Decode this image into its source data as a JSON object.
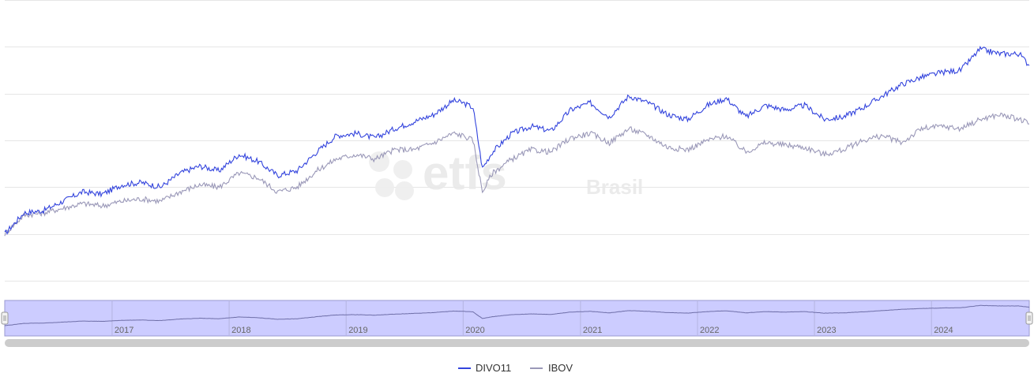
{
  "watermark": {
    "brand": "etfs",
    "sub": "Brasil"
  },
  "colors": {
    "divo11": "#3344dd",
    "ibov": "#9a98b8",
    "grid": "#e6e6e6",
    "navigator_fill": "#ccccff",
    "navigator_border": "#9a9ad0",
    "scrollbar": "#cccccc"
  },
  "legend": [
    {
      "name": "DIVO11",
      "color": "#3344dd"
    },
    {
      "name": "IBOV",
      "color": "#9a98b8"
    }
  ],
  "navigator": {
    "years": [
      "2017",
      "2018",
      "2019",
      "2020",
      "2021",
      "2022",
      "2023",
      "2024"
    ]
  },
  "chart_data": {
    "type": "line",
    "x_range": [
      "2016-02",
      "2024-11"
    ],
    "ylim": [
      0,
      6
    ],
    "grid": true,
    "y_tick_labels_shown": false,
    "legend_position": "bottom-center",
    "series": [
      {
        "name": "DIVO11",
        "color": "#3344dd",
        "x": [
          "2016-02",
          "2016-04",
          "2016-06",
          "2016-08",
          "2016-10",
          "2016-12",
          "2017-02",
          "2017-04",
          "2017-06",
          "2017-08",
          "2017-10",
          "2017-12",
          "2018-02",
          "2018-04",
          "2018-06",
          "2018-08",
          "2018-10",
          "2018-12",
          "2019-02",
          "2019-04",
          "2019-06",
          "2019-08",
          "2019-10",
          "2019-12",
          "2020-01",
          "2020-02",
          "2020-03",
          "2020-04",
          "2020-06",
          "2020-08",
          "2020-10",
          "2020-12",
          "2021-02",
          "2021-04",
          "2021-06",
          "2021-08",
          "2021-10",
          "2021-12",
          "2022-02",
          "2022-04",
          "2022-06",
          "2022-08",
          "2022-10",
          "2022-12",
          "2023-02",
          "2023-04",
          "2023-06",
          "2023-08",
          "2023-10",
          "2023-12",
          "2024-02",
          "2024-04",
          "2024-06",
          "2024-08",
          "2024-10",
          "2024-11"
        ],
        "values": [
          1.0,
          1.45,
          1.5,
          1.7,
          1.9,
          1.85,
          2.05,
          2.1,
          2.0,
          2.3,
          2.45,
          2.35,
          2.7,
          2.55,
          2.25,
          2.35,
          2.75,
          3.1,
          3.15,
          3.05,
          3.25,
          3.4,
          3.55,
          3.85,
          3.8,
          3.7,
          2.4,
          2.75,
          3.15,
          3.3,
          3.2,
          3.65,
          3.8,
          3.5,
          3.95,
          3.8,
          3.55,
          3.45,
          3.75,
          3.9,
          3.5,
          3.75,
          3.65,
          3.75,
          3.45,
          3.5,
          3.7,
          3.95,
          4.2,
          4.35,
          4.45,
          4.5,
          4.95,
          4.85,
          4.85,
          4.6
        ]
      },
      {
        "name": "IBOV",
        "color": "#9a98b8",
        "x": [
          "2016-02",
          "2016-04",
          "2016-06",
          "2016-08",
          "2016-10",
          "2016-12",
          "2017-02",
          "2017-04",
          "2017-06",
          "2017-08",
          "2017-10",
          "2017-12",
          "2018-02",
          "2018-04",
          "2018-06",
          "2018-08",
          "2018-10",
          "2018-12",
          "2019-02",
          "2019-04",
          "2019-06",
          "2019-08",
          "2019-10",
          "2019-12",
          "2020-01",
          "2020-02",
          "2020-03",
          "2020-04",
          "2020-06",
          "2020-08",
          "2020-10",
          "2020-12",
          "2021-02",
          "2021-04",
          "2021-06",
          "2021-08",
          "2021-10",
          "2021-12",
          "2022-02",
          "2022-04",
          "2022-06",
          "2022-08",
          "2022-10",
          "2022-12",
          "2023-02",
          "2023-04",
          "2023-06",
          "2023-08",
          "2023-10",
          "2023-12",
          "2024-02",
          "2024-04",
          "2024-06",
          "2024-08",
          "2024-10",
          "2024-11"
        ],
        "values": [
          1.0,
          1.4,
          1.45,
          1.55,
          1.65,
          1.6,
          1.7,
          1.75,
          1.7,
          1.9,
          2.05,
          2.0,
          2.3,
          2.2,
          1.9,
          2.0,
          2.35,
          2.6,
          2.7,
          2.6,
          2.8,
          2.8,
          2.95,
          3.15,
          3.1,
          3.0,
          1.9,
          2.3,
          2.6,
          2.8,
          2.75,
          3.05,
          3.15,
          2.95,
          3.25,
          3.1,
          2.85,
          2.8,
          3.0,
          3.1,
          2.75,
          2.95,
          2.9,
          2.85,
          2.7,
          2.8,
          3.0,
          3.1,
          2.95,
          3.25,
          3.3,
          3.25,
          3.45,
          3.55,
          3.45,
          3.35
        ]
      }
    ]
  }
}
